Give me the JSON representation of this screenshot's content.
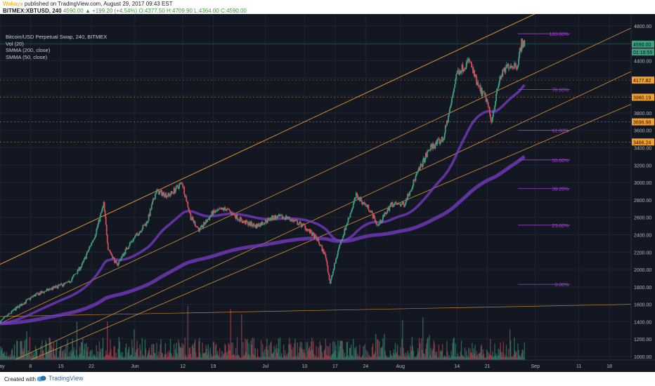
{
  "header": {
    "author": "Wakaya",
    "published_text": "published on TradingView.com, August 29, 2017 09:43 EST",
    "symbol_line": "BITMEX:XBTUSD, 240",
    "last": "4590.00",
    "change": "+199.20 (+4.54%)",
    "ohlc": "O:4377.50 H:4709.90 L:4364.00 C:4590.00"
  },
  "legend": {
    "title": "Bitcoin/USD Perpetual Swap, 240, BITMEX",
    "vol": "Vol (20)",
    "smma200": "SMMA (200, close)",
    "smma50": "SMMA (50, close)"
  },
  "footer": {
    "created": "Created with",
    "brand": "TradingView"
  },
  "colors": {
    "background": "#131722",
    "bull": "#3f9c7f",
    "bear": "#d04c5a",
    "channel": "#f0a030",
    "smma": "#7a3cc8",
    "fib": "#a040d0",
    "grid": "#1f2433"
  },
  "chart_data": {
    "type": "candlestick",
    "y_range": [
      960,
      4920
    ],
    "y_ticks": [
      "4800.00",
      "4600.00",
      "4400.00",
      "4200.00",
      "4000.00",
      "3800.00",
      "3600.00",
      "3400.00",
      "3200.00",
      "3000.00",
      "2800.00",
      "2600.00",
      "2400.00",
      "2200.00",
      "2000.00",
      "1800.00",
      "1600.00",
      "1400.00",
      "1200.00",
      "1000.00"
    ],
    "x_labels": [
      {
        "label": "May",
        "date": "2017-05-01"
      },
      {
        "label": "8",
        "date": "2017-05-08"
      },
      {
        "label": "15",
        "date": "2017-05-15"
      },
      {
        "label": "22",
        "date": "2017-05-22"
      },
      {
        "label": "Jun",
        "date": "2017-06-01"
      },
      {
        "label": "12",
        "date": "2017-06-12"
      },
      {
        "label": "19",
        "date": "2017-06-19"
      },
      {
        "label": "Jul",
        "date": "2017-07-01"
      },
      {
        "label": "10",
        "date": "2017-07-10"
      },
      {
        "label": "17",
        "date": "2017-07-17"
      },
      {
        "label": "24",
        "date": "2017-07-24"
      },
      {
        "label": "Aug",
        "date": "2017-08-01"
      },
      {
        "label": "14",
        "date": "2017-08-14"
      },
      {
        "label": "21",
        "date": "2017-08-21"
      },
      {
        "label": "Sep",
        "date": "2017-09-01"
      },
      {
        "label": "11",
        "date": "2017-09-11"
      },
      {
        "label": "18",
        "date": "2017-09-18"
      }
    ],
    "x_range": [
      "2017-05-01",
      "2017-09-23"
    ],
    "price_path": [
      [
        "2017-05-01",
        1390
      ],
      [
        "2017-05-05",
        1560
      ],
      [
        "2017-05-09",
        1700
      ],
      [
        "2017-05-13",
        1780
      ],
      [
        "2017-05-17",
        1850
      ],
      [
        "2017-05-20",
        2050
      ],
      [
        "2017-05-23",
        2400
      ],
      [
        "2017-05-25",
        2750
      ],
      [
        "2017-05-26",
        2250
      ],
      [
        "2017-05-28",
        2050
      ],
      [
        "2017-05-31",
        2300
      ],
      [
        "2017-06-04",
        2550
      ],
      [
        "2017-06-06",
        2900
      ],
      [
        "2017-06-09",
        2850
      ],
      [
        "2017-06-11",
        2950
      ],
      [
        "2017-06-12",
        3000
      ],
      [
        "2017-06-14",
        2600
      ],
      [
        "2017-06-16",
        2450
      ],
      [
        "2017-06-19",
        2650
      ],
      [
        "2017-06-22",
        2700
      ],
      [
        "2017-06-26",
        2550
      ],
      [
        "2017-06-29",
        2500
      ],
      [
        "2017-07-03",
        2600
      ],
      [
        "2017-07-06",
        2600
      ],
      [
        "2017-07-10",
        2500
      ],
      [
        "2017-07-13",
        2350
      ],
      [
        "2017-07-15",
        2150
      ],
      [
        "2017-07-16",
        1840
      ],
      [
        "2017-07-18",
        2250
      ],
      [
        "2017-07-20",
        2550
      ],
      [
        "2017-07-22",
        2850
      ],
      [
        "2017-07-25",
        2700
      ],
      [
        "2017-07-27",
        2500
      ],
      [
        "2017-07-30",
        2750
      ],
      [
        "2017-08-02",
        2750
      ],
      [
        "2017-08-05",
        3100
      ],
      [
        "2017-08-08",
        3400
      ],
      [
        "2017-08-11",
        3500
      ],
      [
        "2017-08-13",
        3950
      ],
      [
        "2017-08-14",
        4250
      ],
      [
        "2017-08-17",
        4400
      ],
      [
        "2017-08-19",
        4100
      ],
      [
        "2017-08-21",
        3950
      ],
      [
        "2017-08-22",
        3700
      ],
      [
        "2017-08-24",
        4200
      ],
      [
        "2017-08-26",
        4350
      ],
      [
        "2017-08-28",
        4350
      ],
      [
        "2017-08-29",
        4600
      ]
    ],
    "volume_scale_max": 1,
    "price_labels": [
      {
        "value": "4590.00",
        "price": 4590,
        "color": "#3f9c7f"
      },
      {
        "value": "01:16:55",
        "price": 4500,
        "color": "#3f9c7f"
      },
      {
        "value": "4177.82",
        "price": 4177,
        "color": "#f0a030"
      },
      {
        "value": "3980.19",
        "price": 3980,
        "color": "#f0a030"
      },
      {
        "value": "3696.98",
        "price": 3697,
        "color": "#f0a030"
      },
      {
        "value": "3466.24",
        "price": 3466,
        "color": "#f0a030"
      }
    ],
    "fib_levels": [
      {
        "label": "100.00%",
        "price": 4710
      },
      {
        "label": "78.60%",
        "price": 4070
      },
      {
        "label": "61.80%",
        "price": 3600
      },
      {
        "label": "50.00%",
        "price": 3260
      },
      {
        "label": "38.20%",
        "price": 2930
      },
      {
        "label": "23.60%",
        "price": 2510
      },
      {
        "label": "0.00%",
        "price": 1830
      }
    ]
  }
}
